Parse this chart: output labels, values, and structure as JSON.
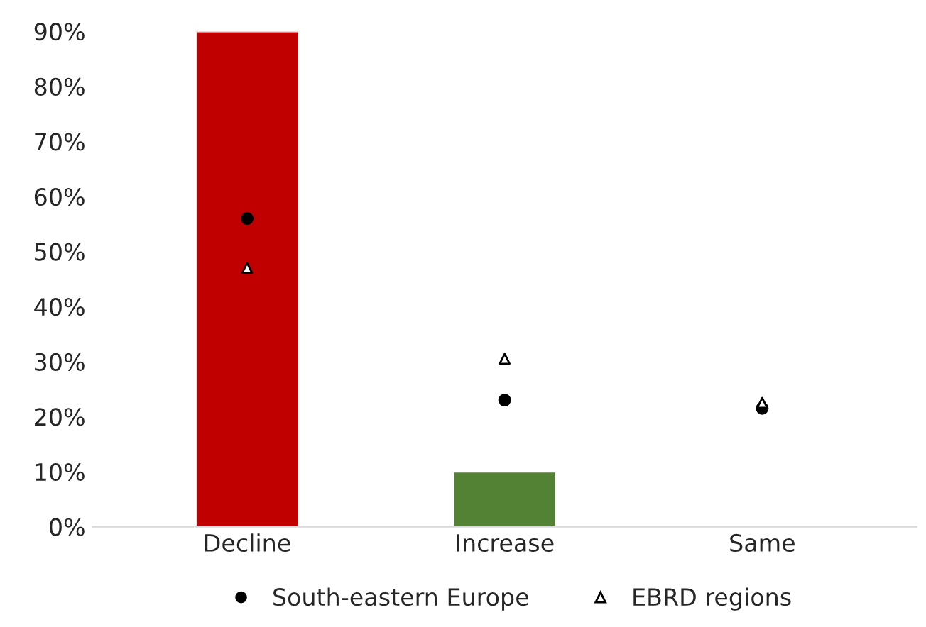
{
  "chart_data": {
    "type": "bar",
    "categories": [
      "Decline",
      "Increase",
      "Same"
    ],
    "series": [
      {
        "colors": [
          "#c00000",
          "#548235",
          null
        ],
        "values": [
          90,
          10,
          null
        ]
      },
      {
        "type": "scatter",
        "name": "South-eastern Europe",
        "color": "#000000",
        "marker": "circle",
        "values": [
          56,
          23,
          21.5
        ]
      },
      {
        "type": "scatter",
        "name": "EBRD regions",
        "color": "#000000",
        "marker": "triangle",
        "values": [
          47,
          30.5,
          22.5
        ]
      }
    ],
    "ylim": [
      0,
      90
    ],
    "yticks": [
      {
        "value": 0,
        "label": "0%"
      },
      {
        "value": 10,
        "label": "10%"
      },
      {
        "value": 20,
        "label": "20%"
      },
      {
        "value": 30,
        "label": "30%"
      },
      {
        "value": 40,
        "label": "40%"
      },
      {
        "value": 50,
        "label": "50%"
      },
      {
        "value": 60,
        "label": "60%"
      },
      {
        "value": 70,
        "label": "70%"
      },
      {
        "value": 80,
        "label": "80%"
      },
      {
        "value": 90,
        "label": "90%"
      }
    ],
    "grid": false,
    "legend": "bottom"
  }
}
